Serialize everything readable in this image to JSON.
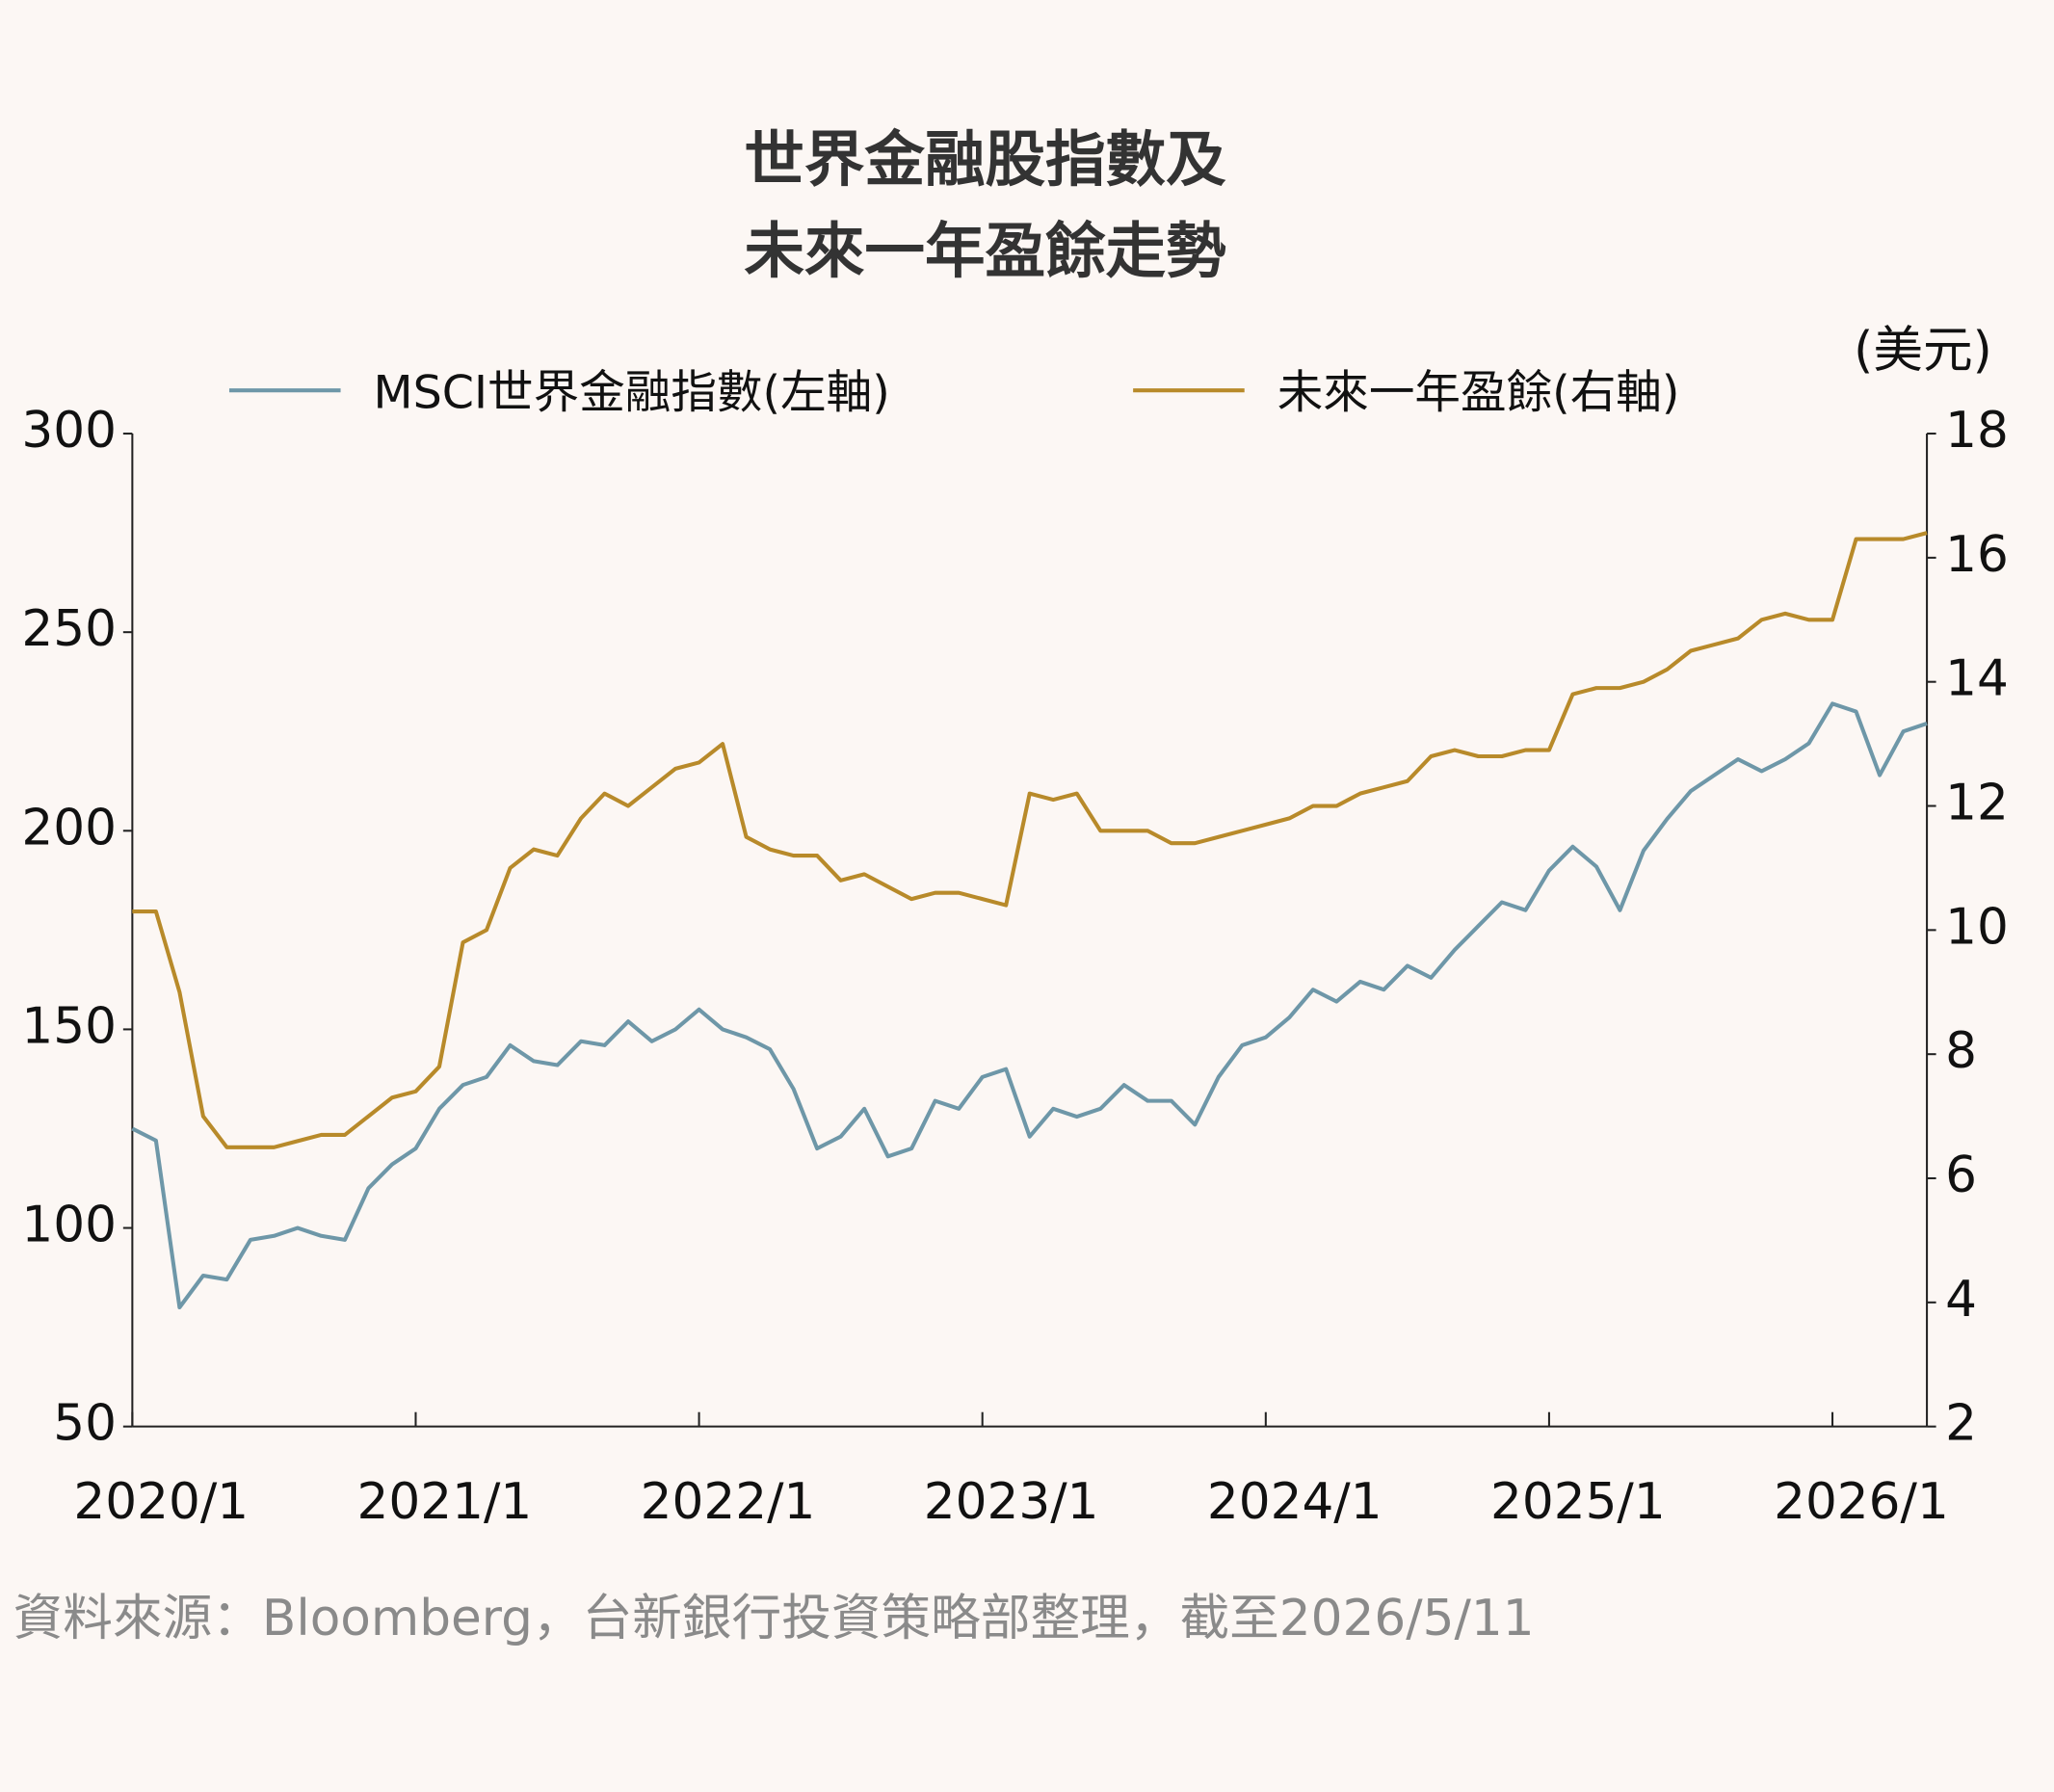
{
  "chart_data": {
    "type": "line",
    "title": [
      "世界金融股指數及",
      "未來一年盈餘走勢"
    ],
    "y2_label": "(美元)",
    "source": "資料來源：Bloomberg，台新銀行投資策略部整理，截至2026/5/11",
    "x": [
      "2020/1",
      "2020/2",
      "2020/3",
      "2020/4",
      "2020/5",
      "2020/6",
      "2020/7",
      "2020/8",
      "2020/9",
      "2020/10",
      "2020/11",
      "2020/12",
      "2021/1",
      "2021/2",
      "2021/3",
      "2021/4",
      "2021/5",
      "2021/6",
      "2021/7",
      "2021/8",
      "2021/9",
      "2021/10",
      "2021/11",
      "2021/12",
      "2022/1",
      "2022/2",
      "2022/3",
      "2022/4",
      "2022/5",
      "2022/6",
      "2022/7",
      "2022/8",
      "2022/9",
      "2022/10",
      "2022/11",
      "2022/12",
      "2023/1",
      "2023/2",
      "2023/3",
      "2023/4",
      "2023/5",
      "2023/6",
      "2023/7",
      "2023/8",
      "2023/9",
      "2023/10",
      "2023/11",
      "2023/12",
      "2024/1",
      "2024/2",
      "2024/3",
      "2024/4",
      "2024/5",
      "2024/6",
      "2024/7",
      "2024/8",
      "2024/9",
      "2024/10",
      "2024/11",
      "2024/12",
      "2025/1",
      "2025/2",
      "2025/3",
      "2025/4",
      "2025/5",
      "2025/6",
      "2025/7",
      "2025/8",
      "2025/9",
      "2025/10",
      "2025/11",
      "2025/12",
      "2026/1",
      "2026/2",
      "2026/3",
      "2026/4",
      "2026/5"
    ],
    "xlim": [
      "2020/1",
      "2026/5"
    ],
    "xticks": [
      "2020/1",
      "2021/1",
      "2022/1",
      "2023/1",
      "2024/1",
      "2025/1",
      "2026/1"
    ],
    "ylim": [
      50,
      300
    ],
    "yticks": [
      50,
      100,
      150,
      200,
      250,
      300
    ],
    "y2lim": [
      2,
      18
    ],
    "y2ticks": [
      2,
      4,
      6,
      8,
      10,
      12,
      14,
      16,
      18
    ],
    "series": [
      {
        "name": "MSCI世界金融指數(左軸)",
        "color": "#6e97a8",
        "values": [
          125,
          122,
          80,
          88,
          87,
          97,
          98,
          100,
          98,
          97,
          110,
          116,
          120,
          130,
          136,
          138,
          146,
          142,
          141,
          147,
          146,
          152,
          147,
          150,
          155,
          150,
          148,
          145,
          135,
          120,
          123,
          130,
          118,
          120,
          132,
          130,
          138,
          140,
          123,
          130,
          128,
          130,
          136,
          132,
          132,
          126,
          138,
          146,
          148,
          153,
          160,
          157,
          162,
          160,
          166,
          163,
          170,
          176,
          182,
          180,
          190,
          196,
          191,
          180,
          195,
          203,
          210,
          214,
          218,
          215,
          218,
          222,
          232,
          230,
          214,
          225,
          227
        ]
      },
      {
        "name": "未來一年盈餘(右軸)",
        "color": "#b88a2a",
        "axis": "y2",
        "values": [
          10.3,
          10.3,
          9.0,
          7.0,
          6.5,
          6.5,
          6.5,
          6.6,
          6.7,
          6.7,
          7.0,
          7.3,
          7.4,
          7.8,
          9.8,
          10.0,
          11.0,
          11.3,
          11.2,
          11.8,
          12.2,
          12.0,
          12.3,
          12.6,
          12.7,
          13.0,
          11.5,
          11.3,
          11.2,
          11.2,
          10.8,
          10.9,
          10.7,
          10.5,
          10.6,
          10.6,
          10.5,
          10.4,
          12.2,
          12.1,
          12.2,
          11.6,
          11.6,
          11.6,
          11.4,
          11.4,
          11.5,
          11.6,
          11.7,
          11.8,
          12.0,
          12.0,
          12.2,
          12.3,
          12.4,
          12.8,
          12.9,
          12.8,
          12.8,
          12.9,
          12.9,
          13.8,
          13.9,
          13.9,
          14.0,
          14.2,
          14.5,
          14.6,
          14.7,
          15.0,
          15.1,
          15.0,
          15.0,
          16.3,
          16.3,
          16.3,
          16.4
        ]
      }
    ]
  }
}
